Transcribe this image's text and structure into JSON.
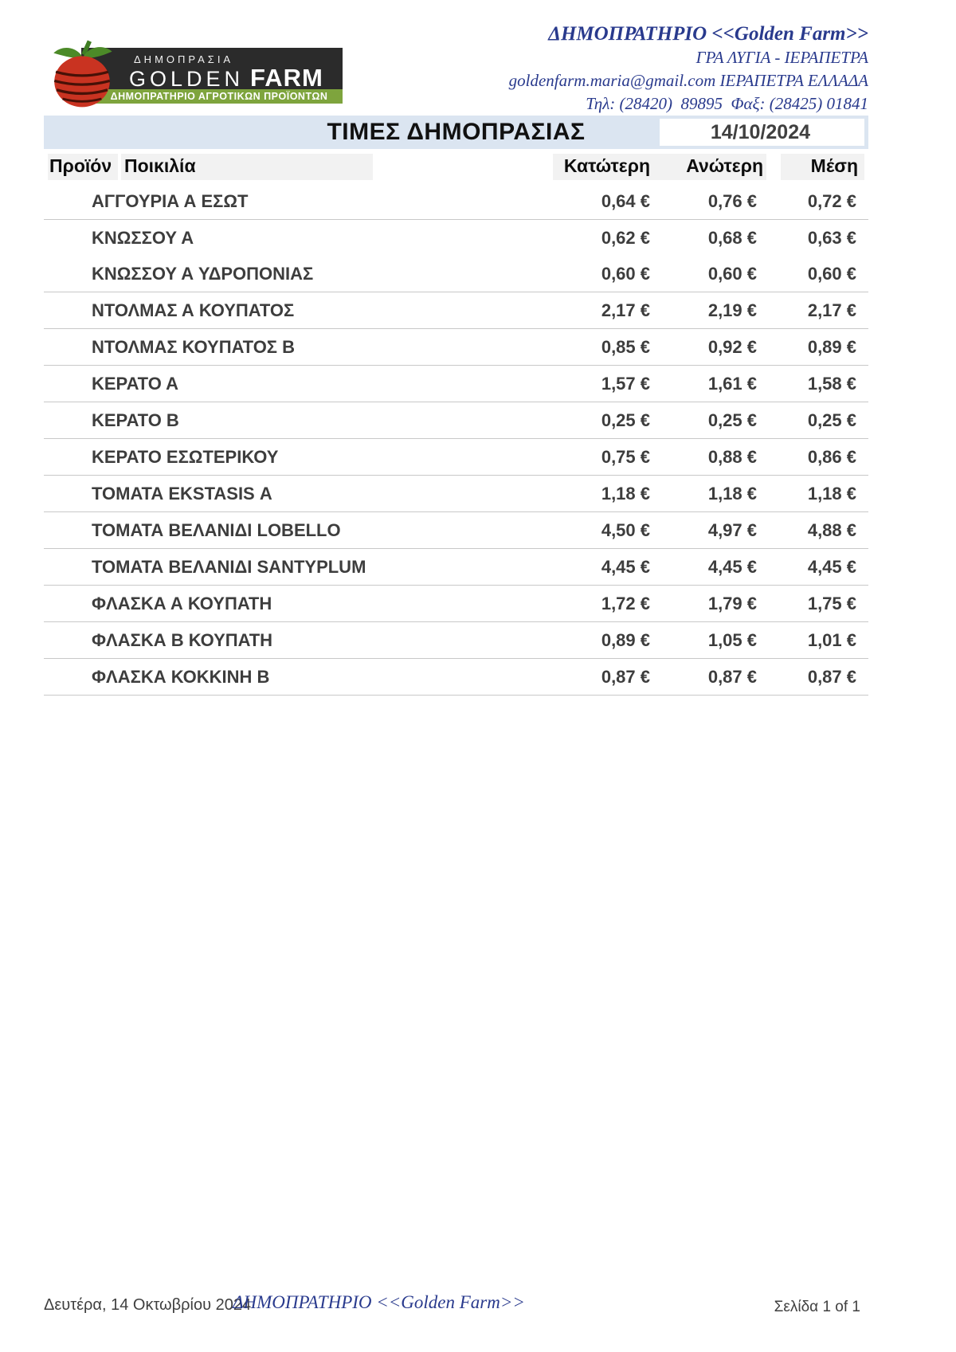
{
  "logo": {
    "auction_word": "ΔΗΜΟΠΡΑΣΙΑ",
    "brand_golden": "GOLDEN",
    "brand_farm": "FARM",
    "tagline": "ΔΗΜΟΠΡΑΤΗΡΙΟ ΑΓΡΟΤΙΚΩΝ ΠΡΟΪΟΝΤΩΝ"
  },
  "contact": {
    "line1": "ΔΗΜΟΠΡΑΤΗΡΙΟ <<Golden Farm>>",
    "line2": "ΓΡΑ ΛΥΓΙΑ - ΙΕΡΑΠΕΤΡΑ",
    "line3": "goldenfarm.maria@gmail.com ΙΕΡΑΠΕΤΡΑ ΕΛΛΑΔΑ",
    "line4": "Τηλ: (28420)  89895  Φαξ: (28425) 01841"
  },
  "title": {
    "text": "ΤΙΜΕΣ ΔΗΜΟΠΡΑΣΙΑΣ",
    "date": "14/10/2024"
  },
  "table": {
    "headers": {
      "product": "Προϊόν",
      "variety": "Ποικιλία",
      "low": "Κατώτερη",
      "high": "Ανώτερη",
      "avg": "Μέση"
    },
    "groups": [
      [
        {
          "variety": "ΑΓΓΟΥΡΙΑ Α ΕΣΩΤ",
          "low": "0,64 €",
          "high": "0,76 €",
          "avg": "0,72 €"
        }
      ],
      [
        {
          "variety": "ΚΝΩΣΣΟΥ Α",
          "low": "0,62 €",
          "high": "0,68 €",
          "avg": "0,63 €"
        },
        {
          "variety": "ΚΝΩΣΣΟΥ Α ΥΔΡΟΠΟΝΙΑΣ",
          "low": "0,60 €",
          "high": "0,60 €",
          "avg": "0,60 €"
        }
      ],
      [
        {
          "variety": "ΝΤΟΛΜΑΣ Α ΚΟΥΠΑΤΟΣ",
          "low": "2,17 €",
          "high": "2,19 €",
          "avg": "2,17 €"
        }
      ],
      [
        {
          "variety": "ΝΤΟΛΜΑΣ ΚΟΥΠΑΤΟΣ Β",
          "low": "0,85 €",
          "high": "0,92 €",
          "avg": "0,89 €"
        }
      ],
      [
        {
          "variety": "ΚΕΡΑΤΟ Α",
          "low": "1,57 €",
          "high": "1,61 €",
          "avg": "1,58 €"
        }
      ],
      [
        {
          "variety": "ΚΕΡΑΤΟ Β",
          "low": "0,25 €",
          "high": "0,25 €",
          "avg": "0,25 €"
        }
      ],
      [
        {
          "variety": "ΚΕΡΑΤΟ ΕΣΩΤΕΡΙΚΟΥ",
          "low": "0,75 €",
          "high": "0,88 €",
          "avg": "0,86 €"
        }
      ],
      [
        {
          "variety": "ΤΟΜΑΤΑ EKSTASIS Α",
          "low": "1,18 €",
          "high": "1,18 €",
          "avg": "1,18 €"
        }
      ],
      [
        {
          "variety": "ΤΟΜΑΤΑ ΒΕΛΑΝΙΔΙ LOBELLO",
          "low": "4,50 €",
          "high": "4,97 €",
          "avg": "4,88 €"
        }
      ],
      [
        {
          "variety": "ΤΟΜΑΤΑ ΒΕΛΑΝΙΔΙ SANTYPLUM",
          "low": "4,45 €",
          "high": "4,45 €",
          "avg": "4,45 €"
        }
      ],
      [
        {
          "variety": "ΦΛΑΣΚΑ Α ΚΟΥΠΑΤΗ",
          "low": "1,72 €",
          "high": "1,79 €",
          "avg": "1,75 €"
        }
      ],
      [
        {
          "variety": "ΦΛΑΣΚΑ Β ΚΟΥΠΑΤΗ",
          "low": "0,89 €",
          "high": "1,05 €",
          "avg": "1,01 €"
        }
      ],
      [
        {
          "variety": "ΦΛΑΣΚΑ ΚΟΚΚΙΝΗ Β",
          "low": "0,87 €",
          "high": "0,87 €",
          "avg": "0,87 €"
        }
      ]
    ]
  },
  "footer": {
    "date_long": "Δευτέρα, 14 Οκτωβρίου 2024",
    "brand": "ΔΗΜΟΠΡΑΤΗΡΙΟ <<Golden Farm>>",
    "page": "Σελίδα 1 of 1"
  },
  "colors": {
    "title_bar": "#dbe5f1",
    "header_cell": "#f2f2f2",
    "navy": "#293a8d",
    "body_text": "#3d3d3d",
    "divider": "#c8c8c8",
    "logo_dark": "#2b2b2b",
    "logo_green": "#7ea43d",
    "tomato_red": "#c93321"
  }
}
